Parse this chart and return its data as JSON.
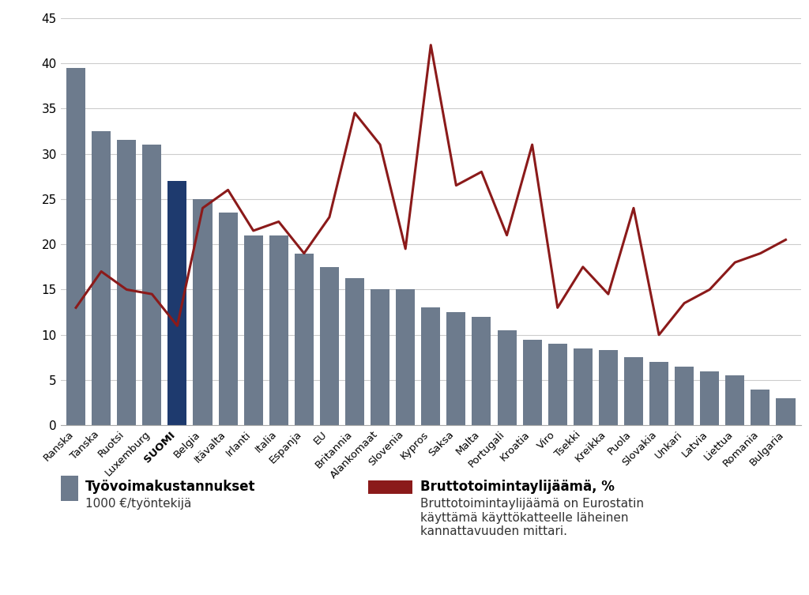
{
  "categories": [
    "Ranska",
    "Tanska",
    "Ruotsi",
    "Luxemburg",
    "SUOMI",
    "Belgia",
    "Itävalta",
    "Irlanti",
    "Italia",
    "Espanja",
    "EU",
    "Britannia",
    "Alankomaat",
    "Slovenia",
    "Kypros",
    "Saksa",
    "Malta",
    "Portugali",
    "Kroatia",
    "Viro",
    "Tsekki",
    "Kreikka",
    "Puola",
    "Slovakia",
    "Unkari",
    "Latvia",
    "Liettua",
    "Romania",
    "Bulgaria"
  ],
  "bar_values": [
    39.5,
    32.5,
    31.5,
    31.0,
    27.0,
    25.0,
    23.5,
    21.0,
    21.0,
    19.0,
    17.5,
    16.3,
    15.0,
    15.0,
    13.0,
    12.5,
    12.0,
    10.5,
    9.5,
    9.0,
    8.5,
    8.3,
    7.5,
    7.0,
    6.5,
    6.0,
    5.5,
    4.0,
    3.0
  ],
  "line_values": [
    13.0,
    17.0,
    15.0,
    14.5,
    11.0,
    24.0,
    26.0,
    21.5,
    22.5,
    19.0,
    23.0,
    34.5,
    31.0,
    19.5,
    42.0,
    26.5,
    28.0,
    21.0,
    31.0,
    13.0,
    17.5,
    14.5,
    24.0,
    10.0,
    13.5,
    15.0,
    18.0,
    19.0,
    20.5
  ],
  "bar_color_default": "#6d7b8d",
  "bar_color_highlight": "#1e3a6e",
  "highlight_index": 4,
  "line_color": "#8b1a1a",
  "ylim": [
    0,
    45
  ],
  "yticks": [
    0,
    5,
    10,
    15,
    20,
    25,
    30,
    35,
    40,
    45
  ],
  "background_color": "#ffffff",
  "grid_color": "#cccccc",
  "legend_bar_bold": "Työvoimakustannukset",
  "legend_bar_normal": "1000 €/työntekijä",
  "legend_line_bold": "Bruttotoimintaylijäämä, %",
  "legend_line_normal": "Bruttotoimintaylijäämä on Eurostatin\nkäyttämä käyttökatteelle läheinen\nkannattavuuden mittari."
}
